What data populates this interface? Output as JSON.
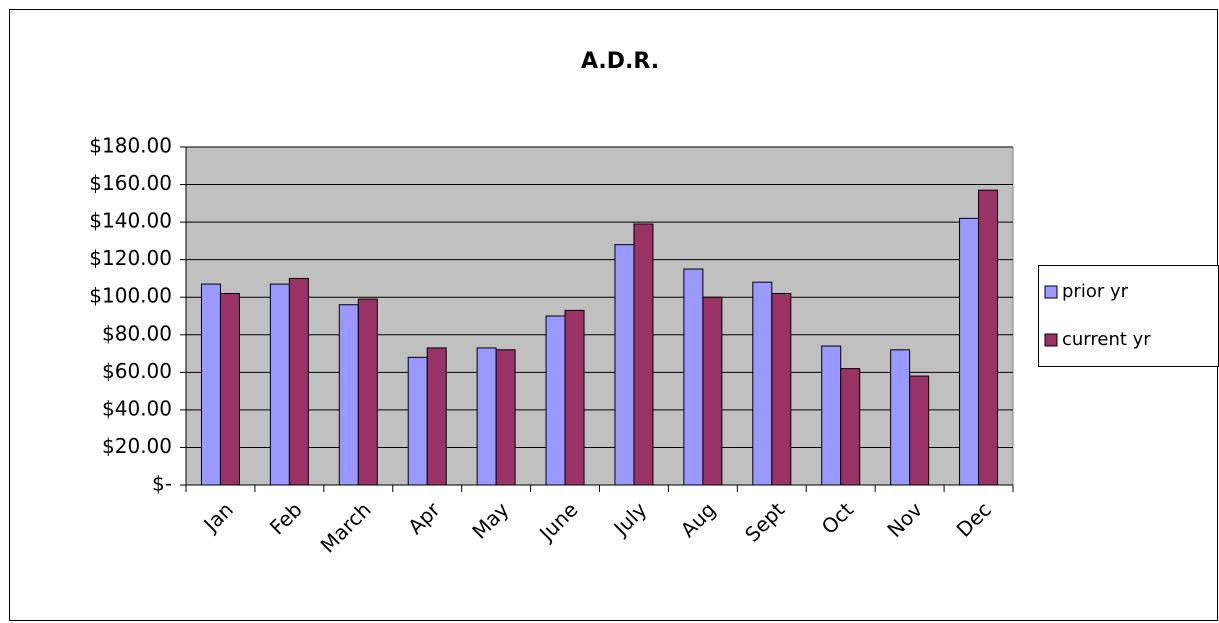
{
  "chart_data": {
    "type": "bar",
    "title": "A.D.R.",
    "categories": [
      "Jan",
      "Feb",
      "March",
      "Apr",
      "May",
      "June",
      "July",
      "Aug",
      "Sept",
      "Oct",
      "Nov",
      "Dec"
    ],
    "series": [
      {
        "name": "prior yr",
        "color": "#9999ff",
        "values": [
          107,
          107,
          96,
          68,
          73,
          90,
          128,
          115,
          108,
          74,
          72,
          142
        ]
      },
      {
        "name": "current yr",
        "color": "#993366",
        "values": [
          102,
          110,
          99,
          73,
          72,
          93,
          139,
          100,
          102,
          62,
          58,
          157
        ]
      }
    ],
    "ylim": [
      0,
      180
    ],
    "yticks": [
      {
        "value": 0,
        "label": "$-"
      },
      {
        "value": 20,
        "label": "$20.00"
      },
      {
        "value": 40,
        "label": "$40.00"
      },
      {
        "value": 60,
        "label": "$60.00"
      },
      {
        "value": 80,
        "label": "$80.00"
      },
      {
        "value": 100,
        "label": "$100.00"
      },
      {
        "value": 120,
        "label": "$120.00"
      },
      {
        "value": 140,
        "label": "$140.00"
      },
      {
        "value": 160,
        "label": "$160.00"
      },
      {
        "value": 180,
        "label": "$180.00"
      }
    ],
    "grid": true,
    "legend": "right"
  }
}
